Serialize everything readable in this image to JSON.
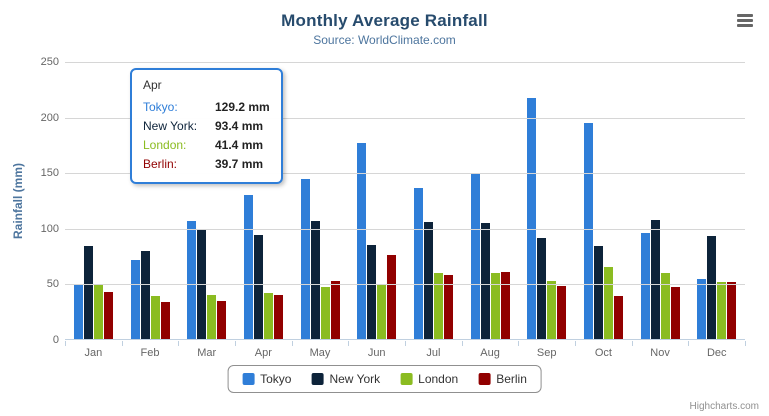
{
  "chart": {
    "title": "Monthly Average Rainfall",
    "subtitle": "Source: WorldClimate.com",
    "ylabel": "Rainfall (mm)",
    "credits": "Highcharts.com"
  },
  "icons": {
    "export_menu": "hamburger-menu"
  },
  "chart_data": {
    "type": "bar",
    "title": "Monthly Average Rainfall",
    "subtitle": "Source: WorldClimate.com",
    "xlabel": "",
    "ylabel": "Rainfall (mm)",
    "ylim": [
      0,
      250
    ],
    "yticks": [
      0,
      50,
      100,
      150,
      200,
      250
    ],
    "grid": true,
    "legend_position": "bottom",
    "categories": [
      "Jan",
      "Feb",
      "Mar",
      "Apr",
      "May",
      "Jun",
      "Jul",
      "Aug",
      "Sep",
      "Oct",
      "Nov",
      "Dec"
    ],
    "series": [
      {
        "name": "Tokyo",
        "color": "#2f7ed8",
        "values": [
          49.9,
          71.5,
          106.4,
          129.2,
          144.0,
          176.0,
          135.6,
          148.5,
          216.4,
          194.1,
          95.6,
          54.4
        ]
      },
      {
        "name": "New York",
        "color": "#0d233a",
        "values": [
          83.6,
          78.8,
          98.5,
          93.4,
          106.0,
          84.5,
          105.0,
          104.3,
          91.2,
          83.5,
          106.6,
          92.3
        ]
      },
      {
        "name": "London",
        "color": "#8bbc21",
        "values": [
          48.9,
          38.8,
          39.3,
          41.4,
          47.0,
          48.3,
          59.0,
          59.6,
          52.4,
          65.2,
          59.3,
          51.2
        ]
      },
      {
        "name": "Berlin",
        "color": "#910000",
        "values": [
          42.4,
          33.2,
          34.5,
          39.7,
          52.6,
          75.5,
          57.4,
          60.4,
          47.6,
          39.1,
          46.8,
          51.1
        ]
      }
    ]
  },
  "tooltip": {
    "category": "Apr",
    "border_color": "#2f7ed8",
    "rows": [
      {
        "name": "Tokyo:",
        "value": "129.2 mm",
        "color": "#2f7ed8"
      },
      {
        "name": "New York:",
        "value": "93.4 mm",
        "color": "#0d233a"
      },
      {
        "name": "London:",
        "value": "41.4 mm",
        "color": "#8bbc21"
      },
      {
        "name": "Berlin:",
        "value": "39.7 mm",
        "color": "#910000"
      }
    ]
  }
}
